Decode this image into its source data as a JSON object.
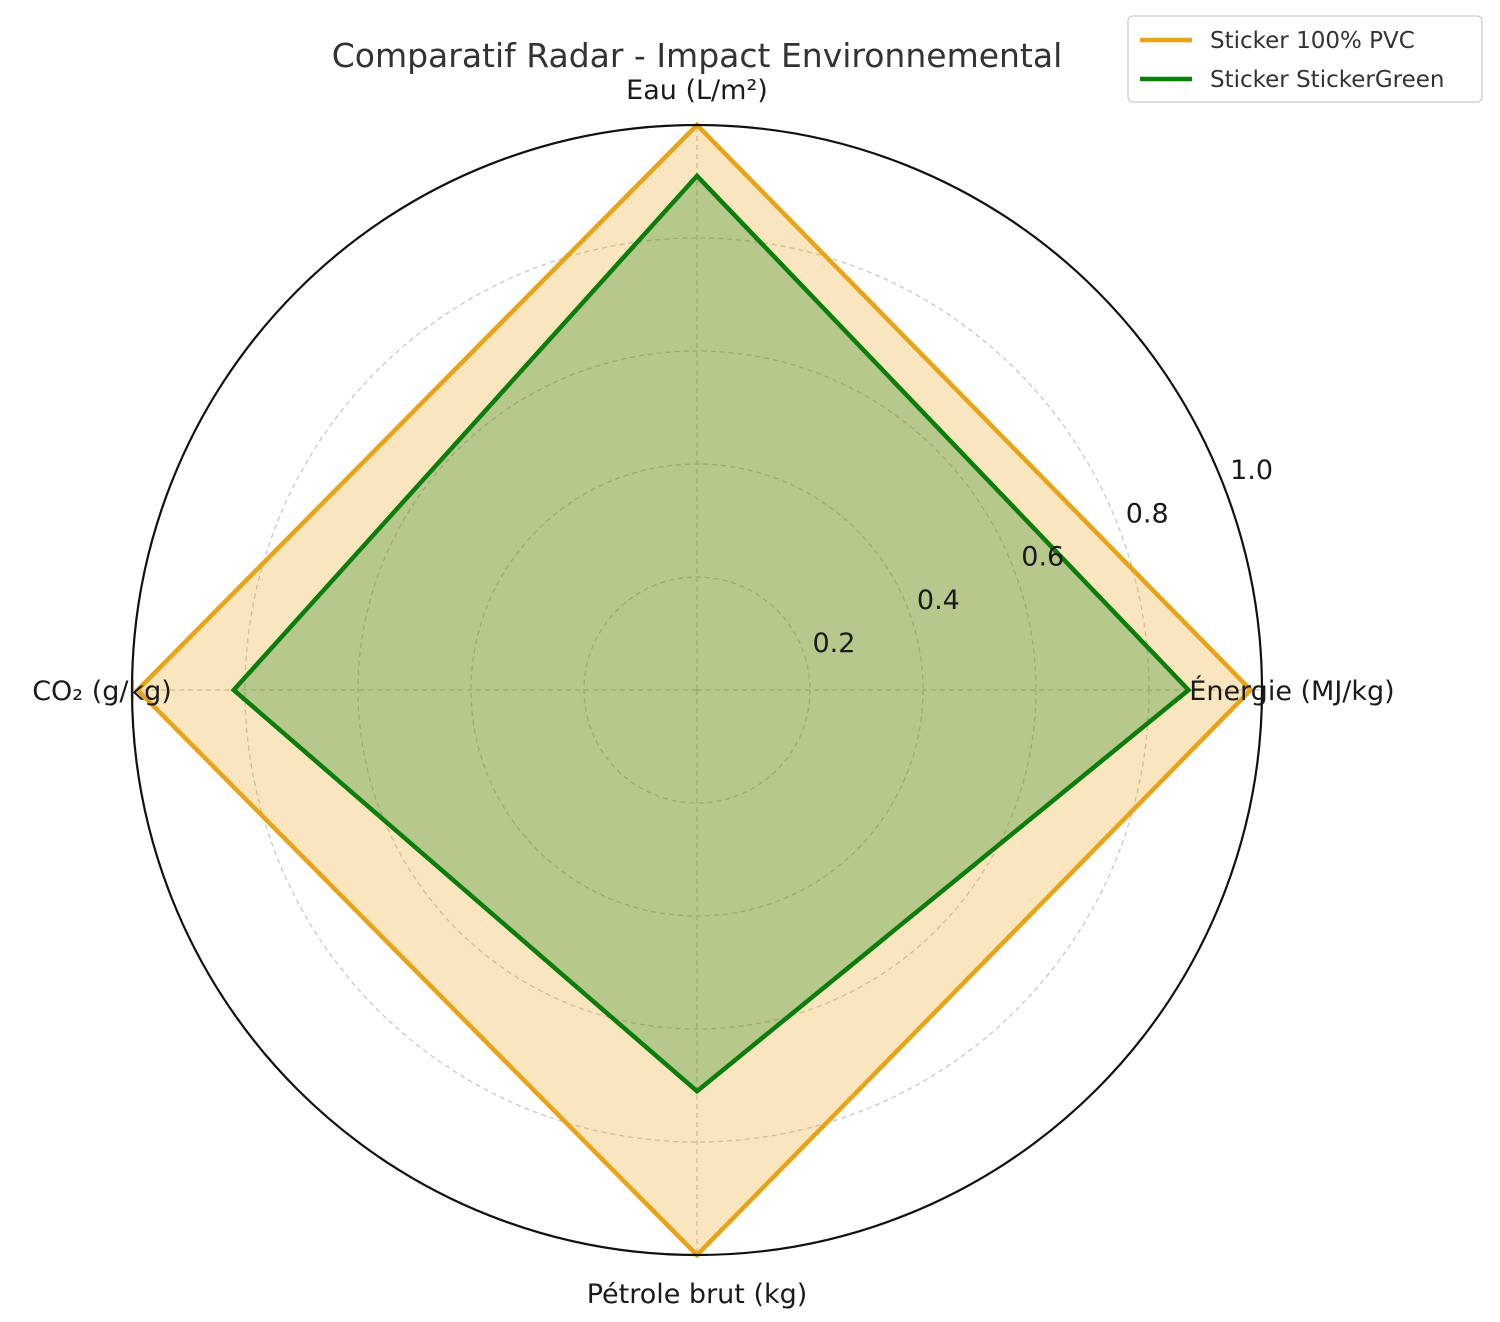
{
  "chart_data": {
    "type": "radar",
    "title": "Comparatif Radar - Impact Environnemental",
    "axes": [
      "Énergie (MJ/kg)",
      "Eau (L/m²)",
      "CO₂ (g/kg)",
      "Pétrole brut (kg)"
    ],
    "rlim": [
      0,
      1.0
    ],
    "rticks": [
      0.2,
      0.4,
      0.6,
      0.8,
      1.0
    ],
    "rtick_labels": [
      "0.2",
      "0.4",
      "0.6",
      "0.8",
      "1.0"
    ],
    "grid": true,
    "legend_position": "top-right",
    "series": [
      {
        "name": "Sticker 100% PVC",
        "values": [
          0.98,
          1.0,
          0.99,
          1.0
        ],
        "color": "#E8A317"
      },
      {
        "name": "Sticker StickerGreen",
        "values": [
          0.87,
          0.91,
          0.82,
          0.71
        ],
        "color": "#0a7d0a"
      }
    ]
  }
}
